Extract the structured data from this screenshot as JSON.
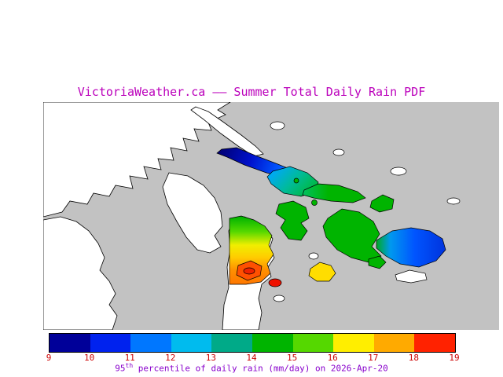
{
  "page": {
    "title": "VictoriaWeather.ca —— Summer Total Daily Rain PDF",
    "title_color": "#bb00bb",
    "background_color": "#ffffff"
  },
  "map": {
    "water_color": "#c2c2c2",
    "land_color": "#ffffff",
    "outline_color": "#000000"
  },
  "colorbar": {
    "ticks": [
      "9",
      "10",
      "11",
      "12",
      "13",
      "14",
      "15",
      "16",
      "17",
      "18",
      "19"
    ],
    "tick_color": "#cc0000",
    "segment_colors": [
      "#000099",
      "#0022ee",
      "#0077ff",
      "#00bbee",
      "#00aa88",
      "#00b400",
      "#55d800",
      "#ffee00",
      "#ffaa00",
      "#ff2200"
    ],
    "caption": {
      "value": "95",
      "superscript": "th",
      "rest": " percentile of daily rain (mm/day) on 2026-Apr-20",
      "color": "#8800cc"
    }
  }
}
